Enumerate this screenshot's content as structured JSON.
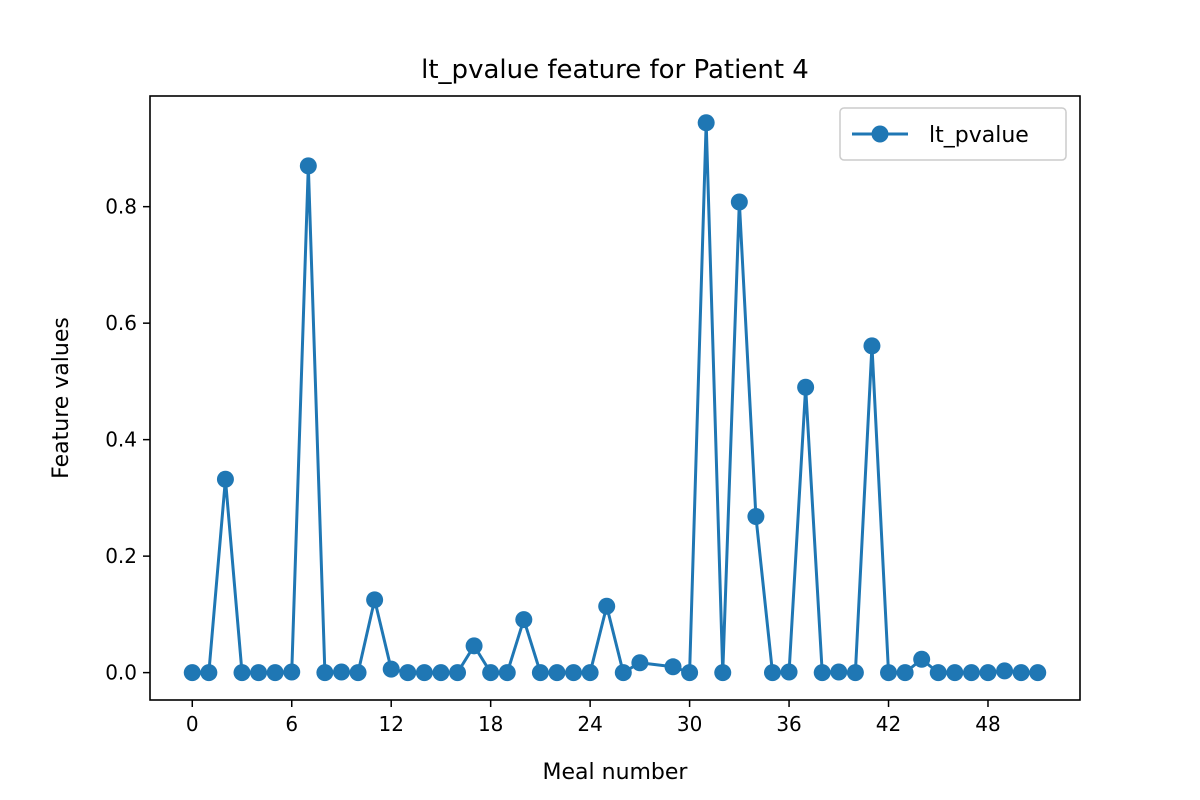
{
  "chart_data": {
    "type": "line",
    "title": "lt_pvalue feature for Patient 4",
    "xlabel": "Meal number",
    "ylabel": "Feature values",
    "xlim": [
      -2.55,
      53.55
    ],
    "ylim": [
      -0.047,
      0.99
    ],
    "xticks": [
      0,
      6,
      12,
      18,
      24,
      30,
      36,
      42,
      48
    ],
    "yticks": [
      0.0,
      0.2,
      0.4,
      0.6,
      0.8
    ],
    "ytick_labels": [
      "0.0",
      "0.2",
      "0.4",
      "0.6",
      "0.8"
    ],
    "grid": false,
    "legend_position": "top-right",
    "series": [
      {
        "name": "lt_pvalue",
        "color": "#1f77b4",
        "marker": "circle",
        "x": [
          0,
          1,
          2,
          3,
          4,
          5,
          6,
          7,
          8,
          9,
          10,
          11,
          12,
          13,
          14,
          15,
          16,
          17,
          18,
          19,
          20,
          21,
          22,
          23,
          24,
          25,
          26,
          27,
          29,
          30,
          31,
          32,
          33,
          34,
          35,
          36,
          37,
          38,
          39,
          40,
          41,
          42,
          43,
          44,
          45,
          46,
          47,
          48,
          49,
          50,
          51
        ],
        "y": [
          0.0,
          0.0,
          0.332,
          0.0,
          0.0,
          0.0,
          0.001,
          0.87,
          0.0,
          0.001,
          0.0,
          0.125,
          0.006,
          0.0,
          0.0,
          0.0,
          0.0,
          0.046,
          0.0,
          0.0,
          0.091,
          0.0,
          0.0,
          0.0,
          0.0,
          0.114,
          0.0,
          0.017,
          0.01,
          0.0,
          0.944,
          0.0,
          0.808,
          0.268,
          0.0,
          0.001,
          0.49,
          0.0,
          0.001,
          0.0,
          0.561,
          0.0,
          0.0,
          0.023,
          0.0,
          0.0,
          0.0,
          0.0,
          0.003,
          0.0,
          0.0
        ]
      }
    ]
  }
}
